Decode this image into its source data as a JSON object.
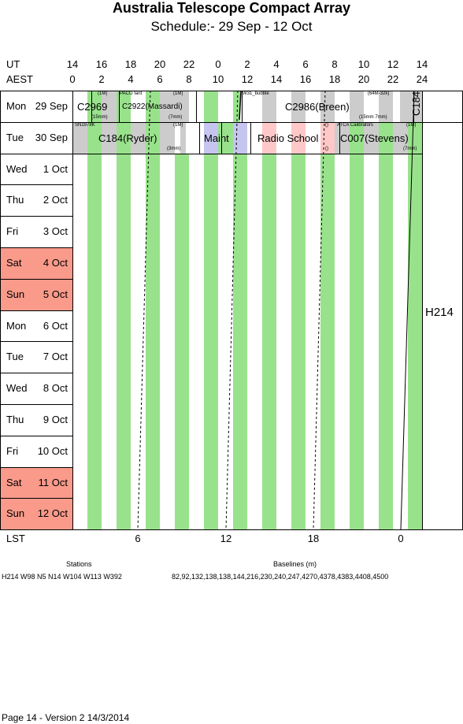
{
  "header": {
    "title": "Australia Telescope Compact Array",
    "subtitle": "Schedule:- 29 Sep - 12 Oct"
  },
  "axes": {
    "ut_label": "UT",
    "aest_label": "AEST",
    "lst_label": "LST",
    "ut_ticks": [
      "14",
      "16",
      "18",
      "20",
      "22",
      "0",
      "2",
      "4",
      "6",
      "8",
      "10",
      "12",
      "14"
    ],
    "aest_ticks": [
      "0",
      "2",
      "4",
      "6",
      "8",
      "10",
      "12",
      "14",
      "16",
      "18",
      "20",
      "22",
      "24"
    ],
    "lst_ticks": [
      "6",
      "12",
      "18",
      "0"
    ]
  },
  "days": [
    {
      "wk": "Mon",
      "date": "29 Sep",
      "weekend": false
    },
    {
      "wk": "Tue",
      "date": "30 Sep",
      "weekend": false
    },
    {
      "wk": "Wed",
      "date": "1 Oct",
      "weekend": false
    },
    {
      "wk": "Thu",
      "date": "2 Oct",
      "weekend": false
    },
    {
      "wk": "Fri",
      "date": "3 Oct",
      "weekend": false
    },
    {
      "wk": "Sat",
      "date": "4 Oct",
      "weekend": true
    },
    {
      "wk": "Sun",
      "date": "5 Oct",
      "weekend": true
    },
    {
      "wk": "Mon",
      "date": "6 Oct",
      "weekend": false
    },
    {
      "wk": "Tue",
      "date": "7 Oct",
      "weekend": false
    },
    {
      "wk": "Wed",
      "date": "8 Oct",
      "weekend": false
    },
    {
      "wk": "Thu",
      "date": "9 Oct",
      "weekend": false
    },
    {
      "wk": "Fri",
      "date": "10 Oct",
      "weekend": false
    },
    {
      "wk": "Sat",
      "date": "11 Oct",
      "weekend": true
    },
    {
      "wk": "Sun",
      "date": "12 Oct",
      "weekend": true
    }
  ],
  "schedule": {
    "mon": {
      "c2969": "C2969",
      "c2969_tag": "(1M)",
      "c2969_rx": "(15mm)",
      "paco": "PACO fant",
      "c2922": "C2922(Massardi)",
      "c2922_tag": "(1M)",
      "c2922_rx": "(7mm)",
      "w31": "W31_bubble",
      "c2986": "C2986(Breen)",
      "c2986_tag": "(64M-32k)",
      "c2986_rx": "(15mm 7mm)",
      "c184": "C184"
    },
    "tue": {
      "sn": "SN1978K",
      "c184": "C184(Ryder)",
      "c184_tag": "(1M)",
      "c184_rx": "(3mm)",
      "maint": "Maint",
      "radio_school": "Radio School",
      "zero_a": "()",
      "zero_b": "()",
      "atca": "ATCA Calibrators",
      "c007": "C007(Stevens)",
      "c007_tag": "(1M)",
      "c007_rx": "(7mm)"
    },
    "config": "H214"
  },
  "footer": {
    "stations_label": "Stations",
    "stations": "H214   W98 N5 N14 W104 W113 W392",
    "baselines_label": "Baselines (m)",
    "baselines": "82,92,132,138,138,144,216,230,240,247,4270,4378,4383,4408,4500",
    "page_info": "Page 14 - Version 2  14/3/2014"
  },
  "colors": {
    "green": "#99e28c",
    "weekend": "#f99a8a",
    "grey": "#cccccc",
    "maint": "#c5c5ef",
    "radio_school": "#ffc8c8"
  }
}
